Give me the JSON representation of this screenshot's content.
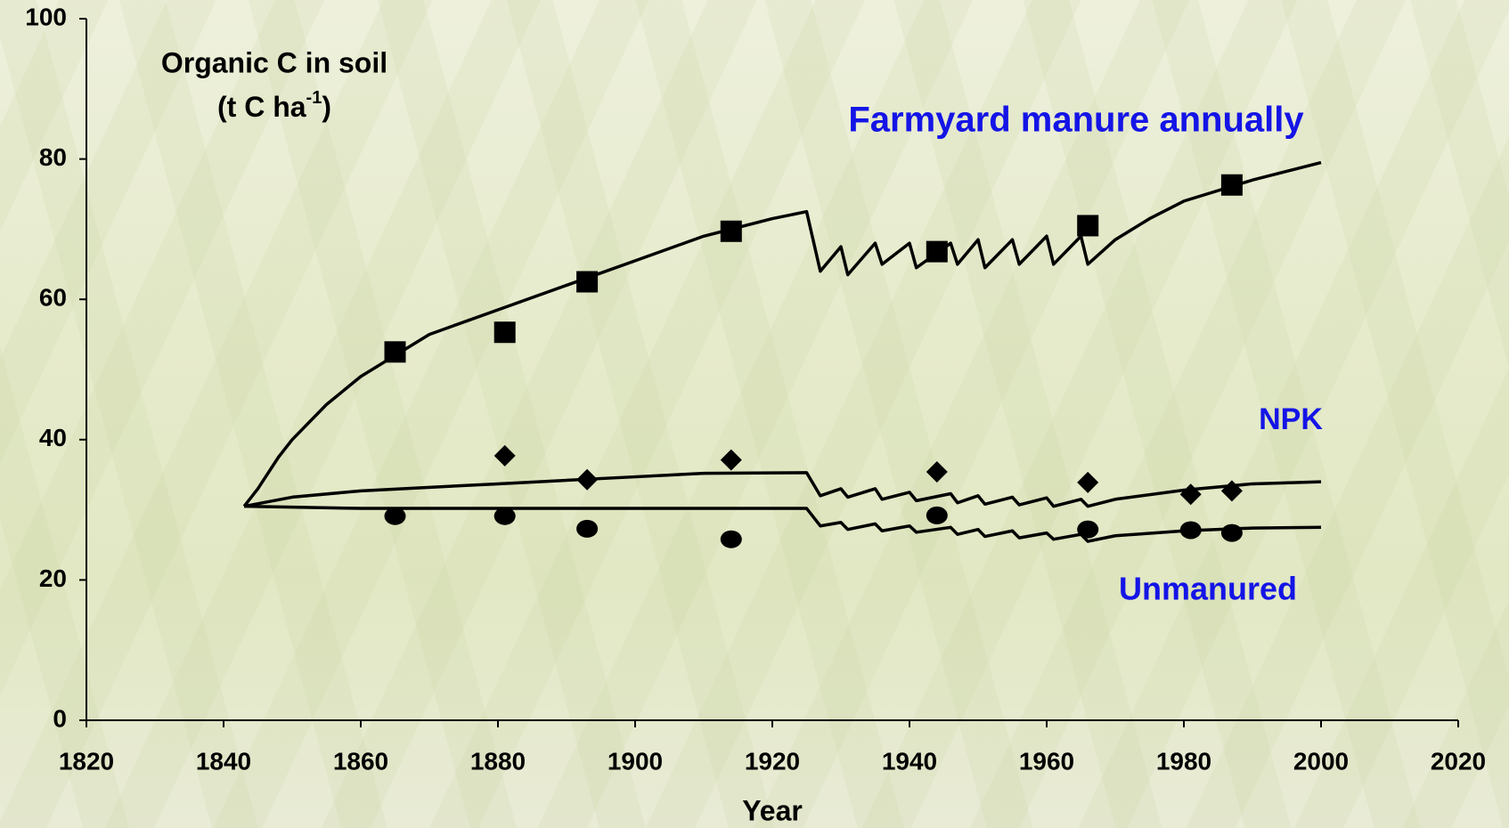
{
  "chart_data": {
    "type": "line",
    "ylabel": "Organic C in soil",
    "yunit": {
      "base": "(t C ha",
      "sup": "-1",
      "tail": ")"
    },
    "xlabel": "Year",
    "xlim": [
      1820,
      2020
    ],
    "xticks": [
      1820,
      1840,
      1860,
      1880,
      1900,
      1920,
      1940,
      1960,
      1980,
      2000,
      2020
    ],
    "ylim": [
      0,
      100
    ],
    "yticks": [
      0,
      20,
      40,
      60,
      80,
      100
    ],
    "annotations": [
      "Farmyard manure annually",
      "NPK",
      "Unmanured"
    ],
    "annotation_color": "#1414e6",
    "series": [
      {
        "type": "line",
        "color": "#000000",
        "x": [
          1843,
          1845,
          1848,
          1850,
          1855,
          1860,
          1865,
          1870,
          1880,
          1890,
          1900,
          1910,
          1920,
          1925,
          1927,
          1930,
          1931,
          1935,
          1936,
          1940,
          1941,
          1946,
          1947,
          1950,
          1951,
          1955,
          1956,
          1960,
          1961,
          1965,
          1966,
          1970,
          1975,
          1980,
          1990,
          2000
        ],
        "values": [
          30.5,
          33,
          37.5,
          40,
          45,
          49,
          52,
          55,
          58.5,
          62,
          65.5,
          69,
          71.5,
          72.5,
          64,
          67.5,
          63.5,
          68,
          65,
          68,
          64.5,
          68,
          65,
          68.5,
          64.5,
          68.5,
          65,
          69,
          65,
          69,
          65,
          68.5,
          71.5,
          74,
          77,
          79.5
        ]
      },
      {
        "type": "line",
        "color": "#000000",
        "x": [
          1843,
          1850,
          1860,
          1880,
          1900,
          1910,
          1925,
          1927,
          1930,
          1931,
          1935,
          1936,
          1940,
          1941,
          1946,
          1947,
          1950,
          1951,
          1955,
          1956,
          1960,
          1961,
          1965,
          1966,
          1970,
          1980,
          1990,
          2000
        ],
        "values": [
          30.5,
          31.8,
          32.7,
          33.7,
          34.7,
          35.2,
          35.3,
          32,
          33,
          31.8,
          33,
          31.5,
          32.5,
          31.3,
          32.3,
          31,
          32,
          30.8,
          31.8,
          30.7,
          31.7,
          30.5,
          31.5,
          30.5,
          31.5,
          32.8,
          33.7,
          34
        ]
      },
      {
        "type": "line",
        "color": "#000000",
        "x": [
          1843,
          1860,
          1900,
          1925,
          1927,
          1930,
          1931,
          1935,
          1936,
          1940,
          1941,
          1946,
          1947,
          1950,
          1951,
          1955,
          1956,
          1960,
          1961,
          1965,
          1966,
          1970,
          1980,
          1990,
          2000
        ],
        "values": [
          30.5,
          30.2,
          30.2,
          30.2,
          27.7,
          28.2,
          27.2,
          28,
          27,
          27.7,
          26.8,
          27.5,
          26.5,
          27.2,
          26.2,
          27,
          26,
          26.7,
          25.8,
          26.5,
          25.5,
          26.3,
          27,
          27.4,
          27.5
        ]
      },
      {
        "type": "scatter",
        "marker": "square",
        "color": "#000000",
        "x": [
          1865,
          1881,
          1893,
          1914,
          1944,
          1966,
          1987
        ],
        "values": [
          52.5,
          55.3,
          62.5,
          69.7,
          66.8,
          70.5,
          76.3
        ]
      },
      {
        "type": "scatter",
        "marker": "diamond",
        "color": "#000000",
        "x": [
          1881,
          1893,
          1914,
          1944,
          1966,
          1981,
          1987
        ],
        "values": [
          37.7,
          34.3,
          37.1,
          35.4,
          33.9,
          32.2,
          32.7
        ]
      },
      {
        "type": "scatter",
        "marker": "circle",
        "color": "#000000",
        "x": [
          1865,
          1881,
          1893,
          1914,
          1944,
          1966,
          1981,
          1987
        ],
        "values": [
          29.1,
          29.1,
          27.3,
          25.8,
          29.2,
          27.2,
          27.1,
          26.7
        ]
      }
    ]
  }
}
